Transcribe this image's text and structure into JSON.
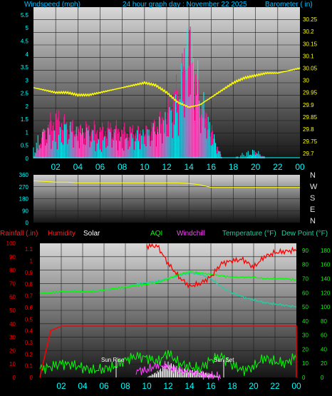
{
  "top": {
    "left_title": "Windspeed (mph)",
    "center_title": "24 hour graph day : November 22 2025",
    "right_title": "Barometer ( in)",
    "left_ticks": [
      "0",
      "0.5",
      "1",
      "1.5",
      "2",
      "2.5",
      "3",
      "3.5",
      "4",
      "4.5",
      "5",
      "5.5"
    ],
    "right_ticks": [
      "29.7",
      "29.75",
      "29.8",
      "29.85",
      "29.9",
      "29.95",
      "30",
      "30.05",
      "30.1",
      "30.15",
      "30.2",
      "30.25"
    ]
  },
  "mid": {
    "ticks": [
      "0",
      "90",
      "180",
      "270",
      "360"
    ],
    "directions": [
      "N",
      "W",
      "S",
      "E",
      "N"
    ]
  },
  "bottom": {
    "rainfall_label": "Rainfall (.in)",
    "humidity_label": "Humidity",
    "solar_label": "Solar",
    "aqi_label": "AQI",
    "windchill_label": "Windchill",
    "temperature_label": "Temperature (°F)",
    "dewpoint_label": "Dew Point (°F)",
    "rain_ticks": [
      "0",
      "0.1",
      "0.2",
      "0.3",
      "0.4",
      "0.5",
      "0.6",
      "0.7",
      "0.8",
      "0.9",
      "1",
      "1.1"
    ],
    "humidity_ticks": [
      "0",
      "10",
      "20",
      "30",
      "40",
      "50",
      "60",
      "70",
      "80",
      "90",
      "100"
    ],
    "temp_ticks": [
      "0",
      "10",
      "20",
      "30",
      "40",
      "50",
      "60",
      "70",
      "80",
      "90"
    ],
    "aqi_ticks": [
      "0",
      "20",
      "40",
      "60",
      "80",
      "100",
      "120",
      "140",
      "160",
      "180"
    ],
    "sunrise_label": "Sun Rise",
    "sunset_label": "Sun Set"
  },
  "x_ticks": [
    "02",
    "04",
    "06",
    "08",
    "10",
    "12",
    "14",
    "16",
    "18",
    "20",
    "22",
    "00"
  ],
  "colors": {
    "wind": "#00ffff",
    "gust": "#ff1493",
    "barometer": "#ffff00",
    "direction": "#ffff00",
    "humidity": "#ff0000",
    "rain": "#ff0000",
    "temperature": "#20d0a0",
    "dewpoint": "#00ff00",
    "aqi": "#00ff00",
    "solar": "#ffffff",
    "windchill": "#ff40ff"
  },
  "chart_data": [
    {
      "type": "line",
      "x": [
        0,
        1,
        2,
        3,
        4,
        5,
        6,
        7,
        8,
        9,
        10,
        11,
        12,
        13,
        14,
        15,
        16,
        17,
        18,
        19,
        20,
        21,
        22,
        23,
        24
      ],
      "ylim": [
        29.68,
        30.3
      ],
      "ylim_wind": [
        0,
        5.8
      ],
      "series": [
        {
          "name": "Barometer",
          "values": [
            29.97,
            29.96,
            29.95,
            29.95,
            29.94,
            29.94,
            29.95,
            29.96,
            29.97,
            29.98,
            29.99,
            29.98,
            29.95,
            29.91,
            29.89,
            29.9,
            29.93,
            29.96,
            29.99,
            30.01,
            30.02,
            30.03,
            30.03,
            30.04,
            30.05
          ]
        },
        {
          "name": "Windspeed",
          "values": [
            0.5,
            1.0,
            0.8,
            1.2,
            0.9,
            1.0,
            0.5,
            1.0,
            0.6,
            0.8,
            0.9,
            1.1,
            1.5,
            2.0,
            4.5,
            2.5,
            1.0,
            0.0,
            0.0,
            0.2,
            0.3,
            0.0,
            0.0,
            0.0,
            0.0
          ]
        },
        {
          "name": "Gust",
          "values": [
            0.0,
            1.0,
            1.5,
            1.2,
            1.0,
            1.1,
            1.0,
            1.1,
            1.0,
            1.0,
            0.9,
            1.2,
            1.5,
            2.5,
            4.0,
            2.0,
            1.0,
            0.0,
            0.0,
            0.0,
            0.2,
            0.0,
            0.0,
            0.0,
            0.0
          ]
        }
      ]
    },
    {
      "type": "line",
      "x": [
        0,
        1,
        2,
        3,
        4,
        5,
        6,
        7,
        8,
        9,
        10,
        11,
        12,
        13,
        14,
        15,
        16,
        17,
        18,
        19,
        20,
        21,
        22,
        23,
        24
      ],
      "ylim": [
        0,
        360
      ],
      "series": [
        {
          "name": "Wind Direction",
          "values": [
            315,
            310,
            305,
            305,
            300,
            300,
            300,
            300,
            300,
            300,
            300,
            300,
            300,
            300,
            295,
            285,
            265,
            265,
            265,
            265,
            265,
            265,
            265,
            265,
            265
          ]
        }
      ]
    },
    {
      "type": "line",
      "x": [
        0,
        1,
        2,
        3,
        4,
        5,
        6,
        7,
        8,
        9,
        10,
        11,
        12,
        13,
        14,
        15,
        16,
        17,
        18,
        19,
        20,
        21,
        22,
        23,
        24
      ],
      "ylim_temp": [
        0,
        95
      ],
      "ylim_humidity": [
        0,
        100
      ],
      "series": [
        {
          "name": "Temperature",
          "values": [
            60,
            60,
            61,
            61,
            61,
            61,
            62,
            63,
            64,
            66,
            67,
            68,
            70,
            72,
            74,
            73,
            70,
            64,
            60,
            57,
            55,
            53,
            52,
            51,
            50
          ]
        },
        {
          "name": "Dew Point",
          "values": [
            60,
            60,
            61,
            61,
            61,
            61,
            62,
            63,
            64,
            65,
            66,
            67,
            70,
            73,
            75,
            74,
            73,
            72,
            71,
            71,
            71,
            70,
            70,
            70,
            69
          ]
        },
        {
          "name": "Humidity",
          "values": [
            null,
            null,
            null,
            null,
            null,
            null,
            null,
            null,
            null,
            null,
            null,
            98,
            85,
            75,
            68,
            70,
            75,
            85,
            87,
            88,
            82,
            90,
            93,
            94,
            95
          ]
        },
        {
          "name": "Rainfall",
          "values": [
            0.0,
            0.4,
            0.44,
            0.44,
            0.44,
            0.44,
            0.44,
            0.44,
            0.44,
            0.44,
            0.44,
            0.44,
            0.44,
            0.44,
            0.44,
            0.44,
            0.44,
            0.44,
            0.44,
            0.44,
            0.44,
            0.44,
            0.44,
            0.44,
            0.44
          ]
        },
        {
          "name": "AQI",
          "values": [
            12,
            15,
            20,
            18,
            14,
            10,
            12,
            15,
            25,
            30,
            28,
            22,
            35,
            20,
            15,
            12,
            25,
            30,
            18,
            10,
            15,
            28,
            22,
            20,
            30
          ]
        },
        {
          "name": "Solar",
          "values": [
            0,
            0,
            0,
            0,
            0,
            0,
            0,
            0,
            0,
            0,
            0,
            5,
            12,
            8,
            6,
            5,
            3,
            0,
            0,
            0,
            0,
            0,
            0,
            0,
            0
          ]
        },
        {
          "name": "Windchill",
          "values": [
            null,
            null,
            null,
            null,
            null,
            null,
            null,
            null,
            null,
            null,
            10,
            18,
            15,
            10,
            8,
            5,
            2,
            null,
            null,
            null,
            null,
            null,
            null,
            null,
            null
          ]
        }
      ]
    }
  ]
}
